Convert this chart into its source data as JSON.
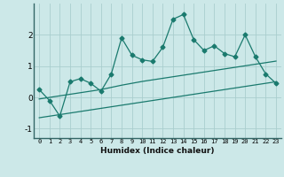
{
  "xlabel": "Humidex (Indice chaleur)",
  "x": [
    0,
    1,
    2,
    3,
    4,
    5,
    6,
    7,
    8,
    9,
    10,
    11,
    12,
    13,
    14,
    15,
    16,
    17,
    18,
    19,
    20,
    21,
    22,
    23
  ],
  "y_line": [
    0.25,
    -0.1,
    -0.6,
    0.5,
    0.6,
    0.45,
    0.2,
    0.75,
    1.9,
    1.35,
    1.2,
    1.15,
    1.6,
    2.5,
    2.65,
    1.85,
    1.5,
    1.65,
    1.4,
    1.3,
    2.0,
    1.3,
    0.75,
    0.45
  ],
  "y_trend1": [
    -0.05,
    0.0,
    0.05,
    0.1,
    0.15,
    0.2,
    0.25,
    0.32,
    0.39,
    0.45,
    0.51,
    0.56,
    0.61,
    0.66,
    0.71,
    0.76,
    0.81,
    0.86,
    0.91,
    0.96,
    1.01,
    1.06,
    1.11,
    1.16
  ],
  "y_trend2": [
    -0.65,
    -0.6,
    -0.55,
    -0.5,
    -0.45,
    -0.4,
    -0.35,
    -0.3,
    -0.25,
    -0.2,
    -0.15,
    -0.1,
    -0.05,
    0.0,
    0.05,
    0.1,
    0.15,
    0.2,
    0.25,
    0.3,
    0.35,
    0.4,
    0.45,
    0.5
  ],
  "line_color": "#1a7a6e",
  "bg_color": "#cce8e8",
  "grid_color": "#aacece",
  "ylim": [
    -1.3,
    3.0
  ],
  "yticks": [
    -1,
    0,
    1,
    2
  ],
  "marker": "D",
  "marker_size": 2.5,
  "linewidth": 0.9
}
